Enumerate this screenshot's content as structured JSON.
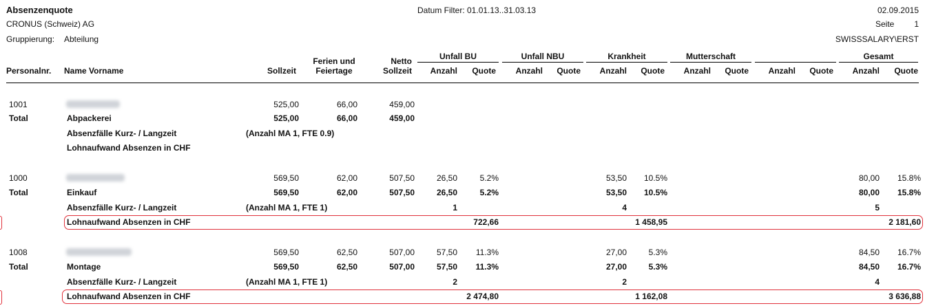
{
  "report": {
    "title": "Absenzenquote",
    "company": "CRONUS (Schweiz) AG",
    "grouping_label": "Gruppierung:",
    "grouping_value": "Abteilung",
    "date_filter": "Datum Filter: 01.01.13..31.03.13",
    "print_date": "02.09.2015",
    "page_label": "Seite",
    "page_number": "1",
    "user": "SWISSSALARY\\ERST"
  },
  "columns": {
    "personalnr": "Personalnr.",
    "name": "Name Vorname",
    "sollzeit": "Sollzeit",
    "ferien_1": "Ferien und",
    "ferien_2": "Feiertage",
    "netto_1": "Netto",
    "netto_2": "Sollzeit",
    "groups": [
      "Unfall BU",
      "Unfall NBU",
      "Krankheit",
      "Mutterschaft",
      "",
      "Gesamt"
    ],
    "anzahl": "Anzahl",
    "quote": "Quote"
  },
  "sections": [
    {
      "emp_nr": "1001",
      "emp_soll": "525,00",
      "emp_ferien": "66,00",
      "emp_netto": "459,00",
      "emp_bu_a": "",
      "emp_bu_q": "",
      "emp_kr_a": "",
      "emp_kr_q": "",
      "emp_ges_a": "",
      "emp_ges_q": "",
      "total_label": "Total",
      "dept": "Abpackerei",
      "tot_soll": "525,00",
      "tot_ferien": "66,00",
      "tot_netto": "459,00",
      "tot_bu_a": "",
      "tot_bu_q": "",
      "tot_kr_a": "",
      "tot_kr_q": "",
      "tot_ges_a": "",
      "tot_ges_q": "",
      "cases_label": "Absenzfälle Kurz- / Langzeit",
      "cases_info": "(Anzahl MA 1, FTE 0.9)",
      "cases_bu": "",
      "cases_kr": "",
      "cases_ges": "",
      "cost_label": "Lohnaufwand Absenzen in CHF",
      "cost_bu": "",
      "cost_kr": "",
      "cost_ges": ""
    },
    {
      "emp_nr": "1000",
      "emp_soll": "569,50",
      "emp_ferien": "62,00",
      "emp_netto": "507,50",
      "emp_bu_a": "26,50",
      "emp_bu_q": "5.2%",
      "emp_kr_a": "53,50",
      "emp_kr_q": "10.5%",
      "emp_ges_a": "80,00",
      "emp_ges_q": "15.8%",
      "total_label": "Total",
      "dept": "Einkauf",
      "tot_soll": "569,50",
      "tot_ferien": "62,00",
      "tot_netto": "507,50",
      "tot_bu_a": "26,50",
      "tot_bu_q": "5.2%",
      "tot_kr_a": "53,50",
      "tot_kr_q": "10.5%",
      "tot_ges_a": "80,00",
      "tot_ges_q": "15.8%",
      "cases_label": "Absenzfälle Kurz- / Langzeit",
      "cases_info": "(Anzahl MA 1, FTE 1)",
      "cases_bu": "1",
      "cases_kr": "4",
      "cases_ges": "5",
      "cost_label": "Lohnaufwand Absenzen in CHF",
      "cost_bu": "722,66",
      "cost_kr": "1 458,95",
      "cost_ges": "2 181,60"
    },
    {
      "emp_nr": "1008",
      "emp_soll": "569,50",
      "emp_ferien": "62,50",
      "emp_netto": "507,00",
      "emp_bu_a": "57,50",
      "emp_bu_q": "11.3%",
      "emp_kr_a": "27,00",
      "emp_kr_q": "5.3%",
      "emp_ges_a": "84,50",
      "emp_ges_q": "16.7%",
      "total_label": "Total",
      "dept": "Montage",
      "tot_soll": "569,50",
      "tot_ferien": "62,50",
      "tot_netto": "507,00",
      "tot_bu_a": "57,50",
      "tot_bu_q": "11.3%",
      "tot_kr_a": "27,00",
      "tot_kr_q": "5.3%",
      "tot_ges_a": "84,50",
      "tot_ges_q": "16.7%",
      "cases_label": "Absenzfälle Kurz- / Langzeit",
      "cases_info": "(Anzahl MA 1, FTE 1)",
      "cases_bu": "2",
      "cases_kr": "2",
      "cases_ges": "4",
      "cost_label": "Lohnaufwand Absenzen in CHF",
      "cost_bu": "2 474,80",
      "cost_kr": "1 162,08",
      "cost_ges": "3 636,88"
    }
  ]
}
